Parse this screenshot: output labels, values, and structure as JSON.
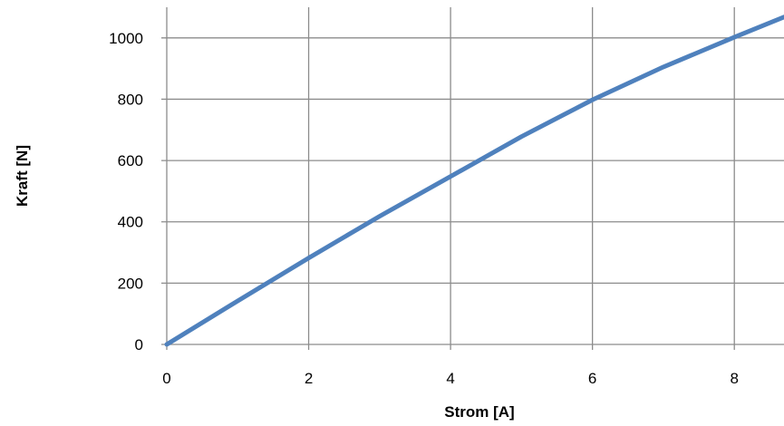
{
  "chart_data": {
    "type": "line",
    "title": "",
    "xlabel": "Strom [A]",
    "ylabel": "Kraft [N]",
    "xlim": [
      0,
      8.7
    ],
    "ylim": [
      0,
      1100
    ],
    "x_ticks": [
      0,
      2,
      4,
      6,
      8
    ],
    "y_ticks": [
      0,
      200,
      400,
      600,
      800,
      1000
    ],
    "grid": true,
    "legend": "none",
    "series": [
      {
        "color": "#4f81bd",
        "x": [
          0,
          1,
          2,
          3,
          4,
          5,
          6,
          7,
          8,
          8.7
        ],
        "y": [
          0,
          142,
          282,
          418,
          548,
          678,
          798,
          905,
          1002,
          1068
        ]
      }
    ]
  }
}
